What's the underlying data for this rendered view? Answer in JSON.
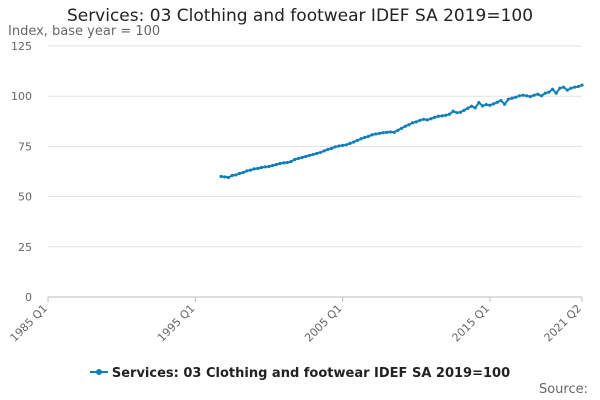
{
  "chart_data": {
    "type": "line",
    "title": "Services: 03 Clothing and footwear IDEF SA 2019=100",
    "ylabel": "Index, base year = 100",
    "xlabel": "",
    "ylim": [
      0,
      125
    ],
    "yticks": [
      0,
      25,
      50,
      75,
      100,
      125
    ],
    "xlim": [
      1985.0,
      2021.25
    ],
    "xticks": [
      {
        "label": "1985 Q1",
        "x": 1985.0
      },
      {
        "label": "1995 Q1",
        "x": 1995.0
      },
      {
        "label": "2005 Q1",
        "x": 2005.0
      },
      {
        "label": "2015 Q1",
        "x": 2015.0
      },
      {
        "label": "2021 Q2",
        "x": 2021.25
      }
    ],
    "grid": "horizontal",
    "legend_position": "bottom-center",
    "series": [
      {
        "name": "Services: 03 Clothing and footwear IDEF SA 2019=100",
        "color": "#0f7fb8",
        "x": [
          1996.75,
          1997.0,
          1997.25,
          1997.5,
          1997.75,
          1998.0,
          1998.25,
          1998.5,
          1998.75,
          1999.0,
          1999.25,
          1999.5,
          1999.75,
          2000.0,
          2000.25,
          2000.5,
          2000.75,
          2001.0,
          2001.25,
          2001.5,
          2001.75,
          2002.0,
          2002.25,
          2002.5,
          2002.75,
          2003.0,
          2003.25,
          2003.5,
          2003.75,
          2004.0,
          2004.25,
          2004.5,
          2004.75,
          2005.0,
          2005.25,
          2005.5,
          2005.75,
          2006.0,
          2006.25,
          2006.5,
          2006.75,
          2007.0,
          2007.25,
          2007.5,
          2007.75,
          2008.0,
          2008.25,
          2008.5,
          2008.75,
          2009.0,
          2009.25,
          2009.5,
          2009.75,
          2010.0,
          2010.25,
          2010.5,
          2010.75,
          2011.0,
          2011.25,
          2011.5,
          2011.75,
          2012.0,
          2012.25,
          2012.5,
          2012.75,
          2013.0,
          2013.25,
          2013.5,
          2013.75,
          2014.0,
          2014.25,
          2014.5,
          2014.75,
          2015.0,
          2015.25,
          2015.5,
          2015.75,
          2016.0,
          2016.25,
          2016.5,
          2016.75,
          2017.0,
          2017.25,
          2017.5,
          2017.75,
          2018.0,
          2018.25,
          2018.5,
          2018.75,
          2019.0,
          2019.25,
          2019.5,
          2019.75,
          2020.0,
          2020.25,
          2020.5,
          2020.75,
          2021.0,
          2021.25
        ],
        "values": [
          60.0,
          59.8,
          59.5,
          60.5,
          60.8,
          61.5,
          62.0,
          62.8,
          63.2,
          63.8,
          64.0,
          64.5,
          64.8,
          65.0,
          65.5,
          66.0,
          66.5,
          66.8,
          67.0,
          67.5,
          68.5,
          69.0,
          69.5,
          70.0,
          70.5,
          71.0,
          71.5,
          72.0,
          72.8,
          73.5,
          74.0,
          74.8,
          75.2,
          75.5,
          75.8,
          76.5,
          77.2,
          78.0,
          78.8,
          79.5,
          80.0,
          80.8,
          81.2,
          81.5,
          81.8,
          82.0,
          82.2,
          82.0,
          83.0,
          84.0,
          85.0,
          85.8,
          86.8,
          87.2,
          88.0,
          88.5,
          88.2,
          88.8,
          89.5,
          90.0,
          90.2,
          90.5,
          91.0,
          92.5,
          91.8,
          92.0,
          93.0,
          94.0,
          95.0,
          94.2,
          96.8,
          95.2,
          95.8,
          95.5,
          96.2,
          97.0,
          97.8,
          96.0,
          98.5,
          99.0,
          99.5,
          100.2,
          100.5,
          100.2,
          99.8,
          100.5,
          101.0,
          100.2,
          101.5,
          102.0,
          103.5,
          101.5,
          104.0,
          104.5,
          103.0,
          104.0,
          104.5,
          104.8,
          105.5
        ]
      }
    ]
  },
  "footer": {
    "source_label": "Source:"
  }
}
